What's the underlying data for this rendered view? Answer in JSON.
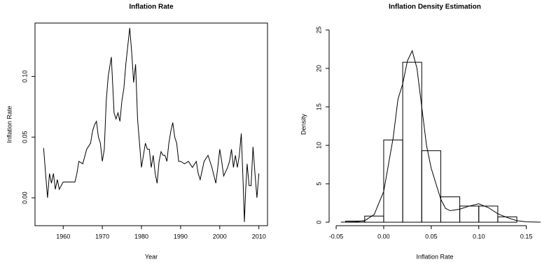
{
  "chart_data": [
    {
      "type": "line",
      "title": "Inflation Rate",
      "xlabel": "Year",
      "ylabel": "Inflation Rate",
      "color": "#000000",
      "x": [
        1955,
        1955.5,
        1956,
        1956.5,
        1957,
        1957.5,
        1958,
        1958.5,
        1959,
        1960,
        1961,
        1962,
        1963,
        1963.5,
        1964,
        1965,
        1966,
        1967,
        1967.5,
        1968,
        1968.5,
        1969,
        1969.5,
        1970,
        1970.5,
        1971,
        1971.5,
        1972,
        1972.3,
        1972.7,
        1973,
        1973.5,
        1974,
        1974.5,
        1975,
        1975.5,
        1976,
        1976.5,
        1977,
        1977.5,
        1978,
        1978.5,
        1979,
        1979.5,
        1980,
        1980.5,
        1981,
        1981.5,
        1982,
        1982.5,
        1983,
        1983.5,
        1984,
        1984.5,
        1985,
        1985.5,
        1986,
        1986.5,
        1987,
        1987.5,
        1988,
        1988.5,
        1989,
        1989.5,
        1990,
        1991,
        1992,
        1993,
        1994,
        1994.5,
        1995,
        1996,
        1997,
        1998,
        1999,
        1999.5,
        2000,
        2000.5,
        2001,
        2002,
        2002.5,
        2003,
        2003.5,
        2004,
        2004.5,
        2005,
        2005.5,
        2006,
        2006.3,
        2006.6,
        2007,
        2007.5,
        2008,
        2008.5,
        2009,
        2009.5,
        2010
      ],
      "values": [
        0.041,
        0.02,
        0.0,
        0.02,
        0.012,
        0.02,
        0.007,
        0.015,
        0.007,
        0.013,
        0.013,
        0.013,
        0.013,
        0.02,
        0.03,
        0.028,
        0.04,
        0.045,
        0.055,
        0.06,
        0.063,
        0.05,
        0.045,
        0.03,
        0.04,
        0.08,
        0.1,
        0.11,
        0.116,
        0.09,
        0.07,
        0.065,
        0.07,
        0.063,
        0.08,
        0.09,
        0.11,
        0.125,
        0.14,
        0.12,
        0.095,
        0.11,
        0.065,
        0.045,
        0.025,
        0.035,
        0.045,
        0.04,
        0.04,
        0.025,
        0.035,
        0.02,
        0.012,
        0.03,
        0.038,
        0.035,
        0.035,
        0.03,
        0.045,
        0.055,
        0.062,
        0.05,
        0.045,
        0.03,
        0.03,
        0.028,
        0.03,
        0.025,
        0.03,
        0.02,
        0.015,
        0.03,
        0.035,
        0.025,
        0.012,
        0.025,
        0.04,
        0.03,
        0.018,
        0.025,
        0.03,
        0.04,
        0.025,
        0.035,
        0.025,
        0.035,
        0.053,
        0.01,
        -0.02,
        0.005,
        0.028,
        0.01,
        0.01,
        0.042,
        0.02,
        0.0,
        0.02
      ],
      "xlim": [
        1952.8,
        2012.2
      ],
      "ylim": [
        -0.023,
        0.144
      ],
      "xticks": [
        1960,
        1970,
        1980,
        1990,
        2000,
        2010
      ],
      "yticks": [
        {
          "value": 0,
          "label": "0.00"
        },
        0.05,
        {
          "value": 0.1,
          "label": "0.10"
        }
      ]
    },
    {
      "type": "histogram",
      "title": "Inflation Density Estimation",
      "xlabel": "Inflation Rate",
      "ylabel": "Density",
      "color": "#000000",
      "bins": [
        -0.04,
        -0.02,
        0,
        0.02,
        0.04,
        0.06,
        0.08,
        0.1,
        0.12,
        0.14
      ],
      "values": [
        0.15,
        0.8,
        10.7,
        20.8,
        9.3,
        3.3,
        2.1,
        2.1,
        0.7
      ],
      "curve": {
        "x": [
          -0.045,
          -0.03,
          -0.02,
          -0.01,
          0,
          0.005,
          0.01,
          0.015,
          0.02,
          0.025,
          0.03,
          0.035,
          0.04,
          0.045,
          0.05,
          0.055,
          0.06,
          0.065,
          0.07,
          0.08,
          0.09,
          0.1,
          0.11,
          0.12,
          0.13,
          0.14,
          0.15,
          0.165
        ],
        "y": [
          0,
          0.05,
          0.2,
          1,
          4,
          7.5,
          11,
          16,
          18,
          21,
          22.3,
          20,
          15,
          10,
          7,
          5,
          3,
          1.8,
          1.5,
          1.7,
          2.1,
          2.4,
          1.9,
          1.1,
          0.6,
          0.2,
          0.05,
          0
        ]
      },
      "xlim": [
        -0.0574,
        0.165
      ],
      "ylim": [
        -0.45,
        25.9
      ],
      "xticks": [
        -0.05,
        {
          "value": 0,
          "label": "0.00"
        },
        0.05,
        {
          "value": 0.1,
          "label": "0.10"
        },
        0.15
      ],
      "yticks": [
        0,
        5,
        10,
        15,
        20,
        25
      ]
    }
  ]
}
